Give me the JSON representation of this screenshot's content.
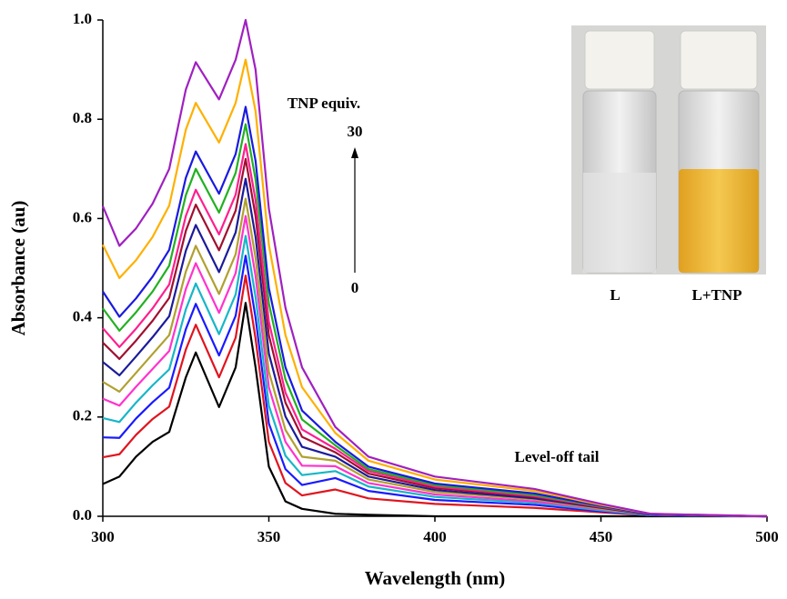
{
  "chart_data": {
    "type": "line",
    "x_label": "Wavelength (nm)",
    "y_label": "Absorbance (au)",
    "x": [
      300,
      305,
      310,
      315,
      320,
      325,
      328,
      335,
      340,
      343,
      346,
      350,
      355,
      360,
      370,
      380,
      400,
      430,
      450,
      465,
      500
    ],
    "series": [
      {
        "color": "#000000",
        "values": [
          0.065,
          0.08,
          0.12,
          0.15,
          0.17,
          0.28,
          0.33,
          0.22,
          0.3,
          0.43,
          0.3,
          0.1,
          0.03,
          0.015,
          0.005,
          0.003,
          0,
          0,
          0,
          0,
          0
        ]
      },
      {
        "color": "#e0141e",
        "values": [
          0.119,
          0.125,
          0.164,
          0.196,
          0.221,
          0.336,
          0.386,
          0.28,
          0.36,
          0.485,
          0.358,
          0.15,
          0.067,
          0.042,
          0.054,
          0.036,
          0.025,
          0.017,
          0.008,
          0.002,
          0
        ]
      },
      {
        "color": "#1a1aff",
        "values": [
          0.159,
          0.158,
          0.197,
          0.23,
          0.259,
          0.377,
          0.428,
          0.324,
          0.404,
          0.525,
          0.4,
          0.187,
          0.095,
          0.063,
          0.077,
          0.051,
          0.033,
          0.023,
          0.01,
          0.002,
          0
        ]
      },
      {
        "color": "#17b6c8",
        "values": [
          0.198,
          0.19,
          0.229,
          0.264,
          0.296,
          0.417,
          0.469,
          0.367,
          0.447,
          0.565,
          0.442,
          0.223,
          0.122,
          0.083,
          0.091,
          0.06,
          0.039,
          0.027,
          0.012,
          0.002,
          0
        ]
      },
      {
        "color": "#ff33cc",
        "values": [
          0.237,
          0.223,
          0.261,
          0.297,
          0.333,
          0.458,
          0.51,
          0.41,
          0.49,
          0.605,
          0.484,
          0.26,
          0.15,
          0.102,
          0.101,
          0.067,
          0.044,
          0.03,
          0.014,
          0.003,
          0
        ]
      },
      {
        "color": "#b0a030",
        "values": [
          0.271,
          0.251,
          0.289,
          0.327,
          0.365,
          0.493,
          0.545,
          0.448,
          0.528,
          0.64,
          0.521,
          0.291,
          0.174,
          0.12,
          0.112,
          0.074,
          0.049,
          0.034,
          0.015,
          0.003,
          0
        ]
      },
      {
        "color": "#1b1b9a",
        "values": [
          0.311,
          0.284,
          0.322,
          0.361,
          0.403,
          0.535,
          0.587,
          0.492,
          0.572,
          0.68,
          0.563,
          0.328,
          0.201,
          0.14,
          0.12,
          0.08,
          0.053,
          0.036,
          0.017,
          0.003,
          0
        ]
      },
      {
        "color": "#a01030",
        "values": [
          0.35,
          0.317,
          0.354,
          0.394,
          0.44,
          0.575,
          0.628,
          0.536,
          0.616,
          0.72,
          0.605,
          0.365,
          0.229,
          0.16,
          0.129,
          0.086,
          0.057,
          0.039,
          0.018,
          0.004,
          0
        ]
      },
      {
        "color": "#ff1f8f",
        "values": [
          0.379,
          0.341,
          0.378,
          0.419,
          0.467,
          0.605,
          0.658,
          0.568,
          0.648,
          0.75,
          0.637,
          0.392,
          0.249,
          0.175,
          0.136,
          0.091,
          0.06,
          0.041,
          0.019,
          0.004,
          0
        ]
      },
      {
        "color": "#22b022",
        "values": [
          0.419,
          0.374,
          0.411,
          0.453,
          0.505,
          0.647,
          0.7,
          0.612,
          0.692,
          0.79,
          0.679,
          0.429,
          0.276,
          0.195,
          0.143,
          0.095,
          0.063,
          0.043,
          0.02,
          0.004,
          0
        ]
      },
      {
        "color": "#1a1ae0",
        "values": [
          0.453,
          0.402,
          0.439,
          0.483,
          0.537,
          0.682,
          0.735,
          0.65,
          0.73,
          0.825,
          0.716,
          0.46,
          0.3,
          0.213,
          0.15,
          0.1,
          0.066,
          0.046,
          0.021,
          0.004,
          0
        ]
      },
      {
        "color": "#ffb000",
        "values": [
          0.547,
          0.48,
          0.516,
          0.563,
          0.626,
          0.779,
          0.833,
          0.753,
          0.833,
          0.92,
          0.816,
          0.547,
          0.365,
          0.26,
          0.168,
          0.112,
          0.074,
          0.051,
          0.023,
          0.005,
          0
        ]
      },
      {
        "color": "#a020c0",
        "values": [
          0.625,
          0.545,
          0.58,
          0.63,
          0.7,
          0.86,
          0.915,
          0.84,
          0.92,
          1.0,
          0.9,
          0.62,
          0.42,
          0.3,
          0.18,
          0.12,
          0.08,
          0.055,
          0.025,
          0.005,
          0
        ]
      }
    ],
    "xlim": [
      300,
      500
    ],
    "xticks": [
      300,
      350,
      400,
      450,
      500
    ],
    "ylim": [
      0,
      1.0
    ],
    "yticks": [
      {
        "value": 0,
        "label": "0.0"
      },
      {
        "value": 0.2,
        "label": "0.2"
      },
      {
        "value": 0.4,
        "label": "0.4"
      },
      {
        "value": 0.6,
        "label": "0.6"
      },
      {
        "value": 0.8,
        "label": "0.8"
      },
      {
        "value": 1.0,
        "label": "1.0"
      }
    ],
    "annotations": [
      "TNP equiv.",
      "30",
      "0",
      "Level-off tail"
    ],
    "inset_labels": [
      "L",
      "L+TNP"
    ]
  }
}
